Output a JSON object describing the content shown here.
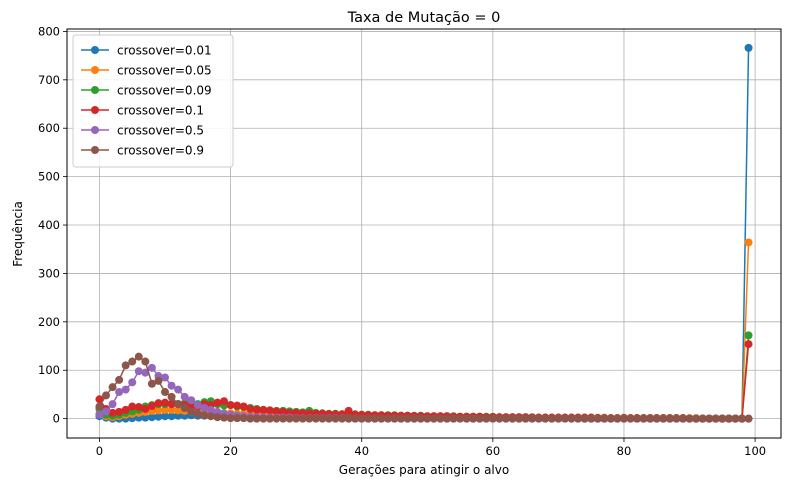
{
  "chart_data": {
    "type": "line",
    "title": "Taxa de Mutação = 0",
    "xlabel": "Gerações para atingir o alvo",
    "ylabel": "Frequência",
    "xlim": [
      -4.95,
      103.95
    ],
    "ylim": [
      -40,
      805
    ],
    "xticks": [
      0,
      20,
      40,
      60,
      80,
      100
    ],
    "yticks": [
      0,
      100,
      200,
      300,
      400,
      500,
      600,
      700,
      800
    ],
    "grid": true,
    "legend_position": "upper-left",
    "series": [
      {
        "name": "crossover=0.01",
        "color": "#1f77b4",
        "x": [
          0,
          1,
          2,
          3,
          4,
          5,
          6,
          7,
          8,
          9,
          10,
          11,
          12,
          13,
          14,
          15,
          16,
          17,
          18,
          19,
          20,
          21,
          22,
          23,
          24,
          25,
          26,
          27,
          28,
          29,
          30,
          31,
          32,
          33,
          34,
          35,
          36,
          37,
          38,
          39,
          40,
          41,
          42,
          43,
          44,
          45,
          46,
          47,
          48,
          49,
          50,
          51,
          52,
          53,
          54,
          55,
          56,
          57,
          58,
          59,
          60,
          61,
          62,
          63,
          64,
          65,
          66,
          67,
          68,
          69,
          70,
          71,
          72,
          73,
          74,
          75,
          76,
          77,
          78,
          79,
          80,
          81,
          82,
          83,
          84,
          85,
          86,
          87,
          88,
          89,
          90,
          91,
          92,
          93,
          94,
          95,
          96,
          97,
          98,
          99
        ],
        "y": [
          5,
          2,
          0,
          0,
          0,
          1,
          2,
          2,
          3,
          4,
          5,
          5,
          6,
          6,
          7,
          6,
          6,
          6,
          6,
          6,
          5,
          5,
          5,
          5,
          5,
          5,
          4,
          4,
          4,
          4,
          4,
          4,
          3,
          3,
          3,
          3,
          3,
          3,
          3,
          3,
          3,
          2,
          2,
          2,
          2,
          2,
          2,
          2,
          2,
          2,
          2,
          2,
          2,
          2,
          2,
          2,
          1,
          1,
          1,
          1,
          2,
          1,
          1,
          1,
          1,
          1,
          1,
          1,
          1,
          1,
          1,
          1,
          1,
          1,
          0,
          0,
          0,
          0,
          0,
          0,
          0,
          0,
          0,
          0,
          0,
          0,
          0,
          0,
          0,
          0,
          0,
          0,
          0,
          0,
          0,
          0,
          0,
          0,
          0,
          766
        ]
      },
      {
        "name": "crossover=0.05",
        "color": "#ff7f0e",
        "x": [
          0,
          1,
          2,
          3,
          4,
          5,
          6,
          7,
          8,
          9,
          10,
          11,
          12,
          13,
          14,
          15,
          16,
          17,
          18,
          19,
          20,
          21,
          22,
          23,
          24,
          25,
          26,
          27,
          28,
          29,
          30,
          31,
          32,
          33,
          34,
          35,
          36,
          37,
          38,
          39,
          40,
          41,
          42,
          43,
          44,
          45,
          46,
          47,
          48,
          49,
          50,
          51,
          52,
          53,
          54,
          55,
          56,
          57,
          58,
          59,
          60,
          61,
          62,
          63,
          64,
          65,
          66,
          67,
          68,
          69,
          70,
          71,
          72,
          73,
          74,
          75,
          76,
          77,
          78,
          79,
          80,
          81,
          82,
          83,
          84,
          85,
          86,
          87,
          88,
          89,
          90,
          91,
          92,
          93,
          94,
          95,
          96,
          97,
          98,
          99
        ],
        "y": [
          10,
          5,
          3,
          5,
          8,
          10,
          12,
          14,
          16,
          17,
          18,
          18,
          17,
          16,
          15,
          14,
          13,
          12,
          12,
          11,
          11,
          10,
          10,
          9,
          9,
          9,
          8,
          8,
          8,
          8,
          7,
          7,
          7,
          7,
          6,
          6,
          6,
          6,
          6,
          6,
          5,
          5,
          5,
          5,
          5,
          6,
          5,
          5,
          5,
          4,
          4,
          4,
          4,
          4,
          4,
          3,
          3,
          3,
          3,
          3,
          3,
          3,
          3,
          3,
          2,
          2,
          2,
          2,
          2,
          2,
          2,
          2,
          2,
          2,
          2,
          2,
          2,
          2,
          1,
          1,
          2,
          1,
          1,
          1,
          1,
          1,
          1,
          1,
          1,
          1,
          1,
          1,
          0,
          0,
          0,
          0,
          0,
          0,
          0,
          364
        ]
      },
      {
        "name": "crossover=0.09",
        "color": "#2ca02c",
        "x": [
          0,
          1,
          2,
          3,
          4,
          5,
          6,
          7,
          8,
          9,
          10,
          11,
          12,
          13,
          14,
          15,
          16,
          17,
          18,
          19,
          20,
          21,
          22,
          23,
          24,
          25,
          26,
          27,
          28,
          29,
          30,
          31,
          32,
          33,
          34,
          35,
          36,
          37,
          38,
          39,
          40,
          41,
          42,
          43,
          44,
          45,
          46,
          47,
          48,
          49,
          50,
          51,
          52,
          53,
          54,
          55,
          56,
          57,
          58,
          59,
          60,
          61,
          62,
          63,
          64,
          65,
          66,
          67,
          68,
          69,
          70,
          71,
          72,
          73,
          74,
          75,
          76,
          77,
          78,
          79,
          80,
          81,
          82,
          83,
          84,
          85,
          86,
          87,
          88,
          89,
          90,
          91,
          92,
          93,
          94,
          95,
          96,
          97,
          98,
          99
        ],
        "y": [
          20,
          8,
          6,
          8,
          12,
          15,
          18,
          25,
          28,
          30,
          30,
          31,
          30,
          32,
          33,
          30,
          34,
          36,
          30,
          27,
          28,
          25,
          24,
          22,
          20,
          18,
          17,
          16,
          16,
          15,
          14,
          13,
          16,
          12,
          11,
          10,
          10,
          9,
          9,
          9,
          8,
          8,
          7,
          7,
          7,
          7,
          6,
          6,
          6,
          6,
          5,
          5,
          5,
          5,
          5,
          4,
          4,
          4,
          4,
          4,
          4,
          3,
          3,
          3,
          3,
          3,
          3,
          2,
          2,
          2,
          2,
          2,
          2,
          2,
          2,
          2,
          1,
          1,
          1,
          1,
          1,
          1,
          1,
          1,
          1,
          1,
          1,
          1,
          1,
          1,
          0,
          0,
          0,
          0,
          0,
          0,
          0,
          0,
          0,
          172
        ]
      },
      {
        "name": "crossover=0.1",
        "color": "#d62728",
        "x": [
          0,
          1,
          2,
          3,
          4,
          5,
          6,
          7,
          8,
          9,
          10,
          11,
          12,
          13,
          14,
          15,
          16,
          17,
          18,
          19,
          20,
          21,
          22,
          23,
          24,
          25,
          26,
          27,
          28,
          29,
          30,
          31,
          32,
          33,
          34,
          35,
          36,
          37,
          38,
          39,
          40,
          41,
          42,
          43,
          44,
          45,
          46,
          47,
          48,
          49,
          50,
          51,
          52,
          53,
          54,
          55,
          56,
          57,
          58,
          59,
          60,
          61,
          62,
          63,
          64,
          65,
          66,
          67,
          68,
          69,
          70,
          71,
          72,
          73,
          74,
          75,
          76,
          77,
          78,
          79,
          80,
          81,
          82,
          83,
          84,
          85,
          86,
          87,
          88,
          89,
          90,
          91,
          92,
          93,
          94,
          95,
          96,
          97,
          98,
          99
        ],
        "y": [
          40,
          20,
          12,
          14,
          18,
          25,
          24,
          20,
          26,
          32,
          33,
          30,
          30,
          28,
          26,
          25,
          30,
          28,
          33,
          36,
          28,
          27,
          25,
          20,
          18,
          18,
          17,
          15,
          14,
          12,
          12,
          11,
          11,
          10,
          10,
          9,
          9,
          9,
          16,
          8,
          8,
          7,
          7,
          7,
          6,
          6,
          6,
          6,
          5,
          5,
          5,
          5,
          5,
          5,
          4,
          4,
          4,
          4,
          4,
          3,
          3,
          3,
          3,
          3,
          3,
          3,
          2,
          2,
          2,
          2,
          2,
          2,
          2,
          2,
          2,
          2,
          1,
          1,
          1,
          1,
          1,
          1,
          1,
          1,
          1,
          1,
          1,
          1,
          1,
          1,
          0,
          0,
          0,
          0,
          0,
          0,
          0,
          0,
          0,
          154
        ]
      },
      {
        "name": "crossover=0.5",
        "color": "#9467bd",
        "x": [
          0,
          1,
          2,
          3,
          4,
          5,
          6,
          7,
          8,
          9,
          10,
          11,
          12,
          13,
          14,
          15,
          16,
          17,
          18,
          19,
          20,
          21,
          22,
          23,
          24,
          25,
          26,
          27,
          28,
          29,
          30,
          31,
          32,
          33,
          34,
          35,
          36,
          37,
          38,
          39,
          40,
          41,
          42,
          43,
          44,
          45,
          46,
          47,
          48,
          49,
          50,
          51,
          52,
          53,
          54,
          55,
          56,
          57,
          58,
          59,
          60,
          61,
          62,
          63,
          64,
          65,
          66,
          67,
          68,
          69,
          70,
          71,
          72,
          73,
          74,
          75,
          76,
          77,
          78,
          79,
          80,
          81,
          82,
          83,
          84,
          85,
          86,
          87,
          88,
          89,
          90,
          91,
          92,
          93,
          94,
          95,
          96,
          97,
          98,
          99
        ],
        "y": [
          8,
          15,
          30,
          55,
          60,
          75,
          98,
          95,
          105,
          88,
          85,
          68,
          60,
          45,
          38,
          28,
          22,
          18,
          14,
          10,
          8,
          6,
          5,
          4,
          3,
          3,
          2,
          2,
          2,
          2,
          1,
          1,
          1,
          1,
          1,
          1,
          1,
          1,
          0,
          0,
          0,
          0,
          0,
          0,
          0,
          0,
          0,
          0,
          0,
          0,
          0,
          0,
          0,
          0,
          0,
          0,
          0,
          0,
          0,
          0,
          0,
          0,
          0,
          0,
          0,
          0,
          0,
          0,
          0,
          0,
          0,
          0,
          0,
          0,
          0,
          0,
          0,
          0,
          0,
          0,
          0,
          0,
          0,
          0,
          0,
          0,
          0,
          0,
          0,
          0,
          0,
          0,
          0,
          0,
          0,
          0,
          0,
          0,
          0,
          0
        ]
      },
      {
        "name": "crossover=0.9",
        "color": "#8c564b",
        "x": [
          0,
          1,
          2,
          3,
          4,
          5,
          6,
          7,
          8,
          9,
          10,
          11,
          12,
          13,
          14,
          15,
          16,
          17,
          18,
          19,
          20,
          21,
          22,
          23,
          24,
          25,
          26,
          27,
          28,
          29,
          30,
          31,
          32,
          33,
          34,
          35,
          36,
          37,
          38,
          39,
          40,
          41,
          42,
          43,
          44,
          45,
          46,
          47,
          48,
          49,
          50,
          51,
          52,
          53,
          54,
          55,
          56,
          57,
          58,
          59,
          60,
          61,
          62,
          63,
          64,
          65,
          66,
          67,
          68,
          69,
          70,
          71,
          72,
          73,
          74,
          75,
          76,
          77,
          78,
          79,
          80,
          81,
          82,
          83,
          84,
          85,
          86,
          87,
          88,
          89,
          90,
          91,
          92,
          93,
          94,
          95,
          96,
          97,
          98,
          99
        ],
        "y": [
          25,
          48,
          65,
          80,
          110,
          118,
          128,
          118,
          72,
          78,
          55,
          45,
          30,
          22,
          15,
          10,
          7,
          5,
          3,
          2,
          1,
          1,
          1,
          0,
          0,
          0,
          0,
          0,
          0,
          0,
          0,
          0,
          0,
          0,
          0,
          0,
          0,
          0,
          0,
          0,
          0,
          0,
          0,
          0,
          0,
          0,
          0,
          0,
          0,
          0,
          0,
          0,
          0,
          0,
          0,
          0,
          0,
          0,
          0,
          0,
          0,
          0,
          0,
          0,
          0,
          0,
          0,
          0,
          0,
          0,
          0,
          0,
          0,
          0,
          0,
          0,
          0,
          0,
          0,
          0,
          0,
          0,
          0,
          0,
          0,
          0,
          0,
          0,
          0,
          0,
          0,
          0,
          0,
          0,
          0,
          0,
          0,
          0,
          0,
          0
        ]
      }
    ]
  }
}
